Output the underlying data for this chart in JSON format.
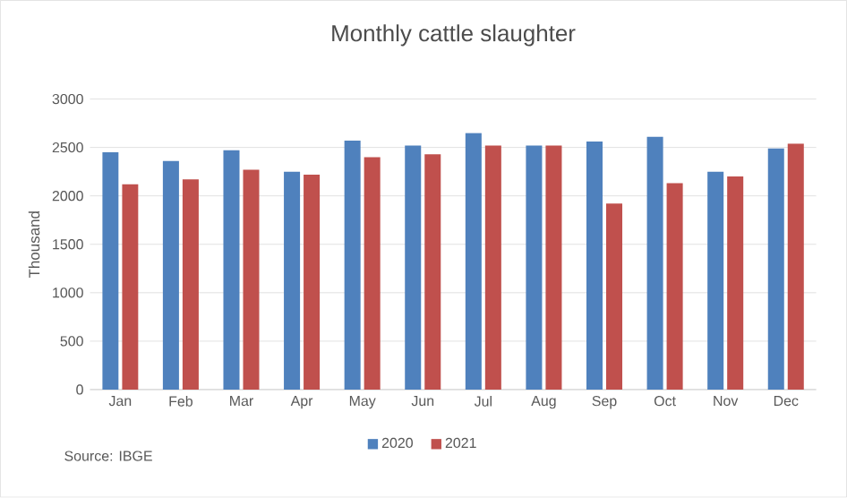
{
  "chart_data": {
    "type": "bar",
    "title": "Monthly cattle slaughter",
    "ylabel": "Thousand",
    "categories": [
      "Jan",
      "Feb",
      "Mar",
      "Apr",
      "May",
      "Jun",
      "Jul",
      "Aug",
      "Sep",
      "Oct",
      "Nov",
      "Dec"
    ],
    "series": [
      {
        "name": "2020",
        "color": "#4f81bd",
        "values": [
          2450,
          2360,
          2470,
          2250,
          2570,
          2520,
          2650,
          2520,
          2560,
          2610,
          2250,
          2490
        ]
      },
      {
        "name": "2021",
        "color": "#c0504d",
        "values": [
          2120,
          2170,
          2270,
          2220,
          2400,
          2430,
          2520,
          2520,
          1920,
          2130,
          2200,
          2540
        ]
      }
    ],
    "ylim": [
      0,
      3000
    ],
    "yticks": [
      0,
      500,
      1000,
      1500,
      2000,
      2500,
      3000
    ],
    "grid": "y",
    "legend": "bottom",
    "annotations": [
      "Source: IBGE"
    ]
  }
}
